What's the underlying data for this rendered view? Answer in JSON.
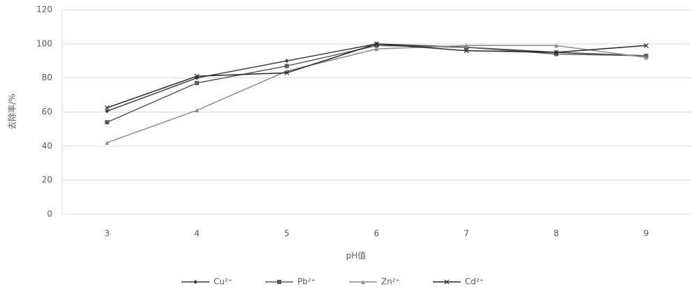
{
  "chart_data": {
    "type": "line",
    "x_label": "pH值",
    "y_label": "去除率/%",
    "categories": [
      "3",
      "4",
      "5",
      "6",
      "7",
      "8",
      "9"
    ],
    "series": [
      {
        "name": "Cu²⁺",
        "color": "#404040",
        "marker": "diamond",
        "values": [
          60.5,
          80,
          90,
          100,
          98,
          95,
          93
        ]
      },
      {
        "name": "Pb²⁺",
        "color": "#595959",
        "marker": "square",
        "values": [
          54,
          77,
          87,
          99,
          98,
          94,
          93
        ]
      },
      {
        "name": "Zn²⁺",
        "color": "#8c8c8c",
        "marker": "triangle",
        "values": [
          42,
          61,
          84,
          97,
          99,
          99,
          92
        ]
      },
      {
        "name": "Cd²⁺",
        "color": "#262626",
        "marker": "x",
        "values": [
          62.5,
          81,
          83,
          100,
          96,
          95,
          99
        ]
      }
    ],
    "ylim": [
      0,
      120
    ],
    "yticks": [
      0,
      20,
      40,
      60,
      80,
      100,
      120
    ],
    "grid": true,
    "legend": "bottom"
  }
}
